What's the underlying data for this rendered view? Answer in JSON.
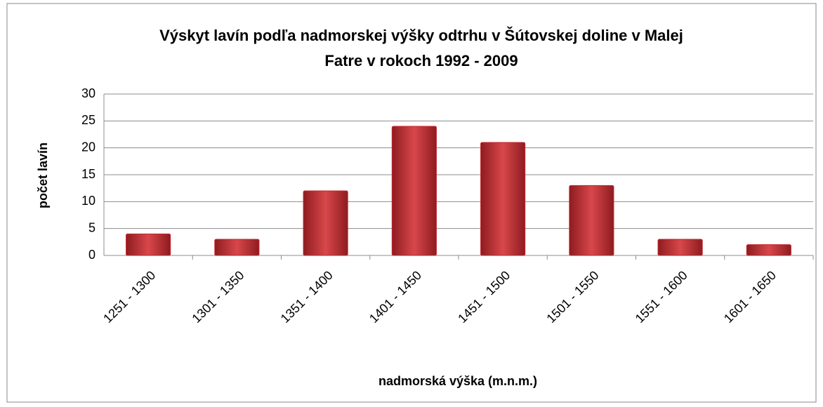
{
  "chart_data": {
    "type": "bar",
    "title": "Výskyt lavín podľa nadmorskej výšky odtrhu  v Šútovskej doline v Malej Fatre v rokoch 1992 - 2009",
    "xlabel": "nadmorská výška (m.n.m.)",
    "ylabel": "počet lavín",
    "categories": [
      "1251 - 1300",
      "1301 - 1350",
      "1351 - 1400",
      "1401 - 1450",
      "1451 - 1500",
      "1501 - 1550",
      "1551 - 1600",
      "1601 - 1650"
    ],
    "values": [
      4,
      3,
      12,
      24,
      21,
      13,
      3,
      2
    ],
    "color": "#c0262c",
    "ylim": [
      0,
      30
    ],
    "yticks": [
      0,
      5,
      10,
      15,
      20,
      25,
      30
    ],
    "grid": true
  }
}
